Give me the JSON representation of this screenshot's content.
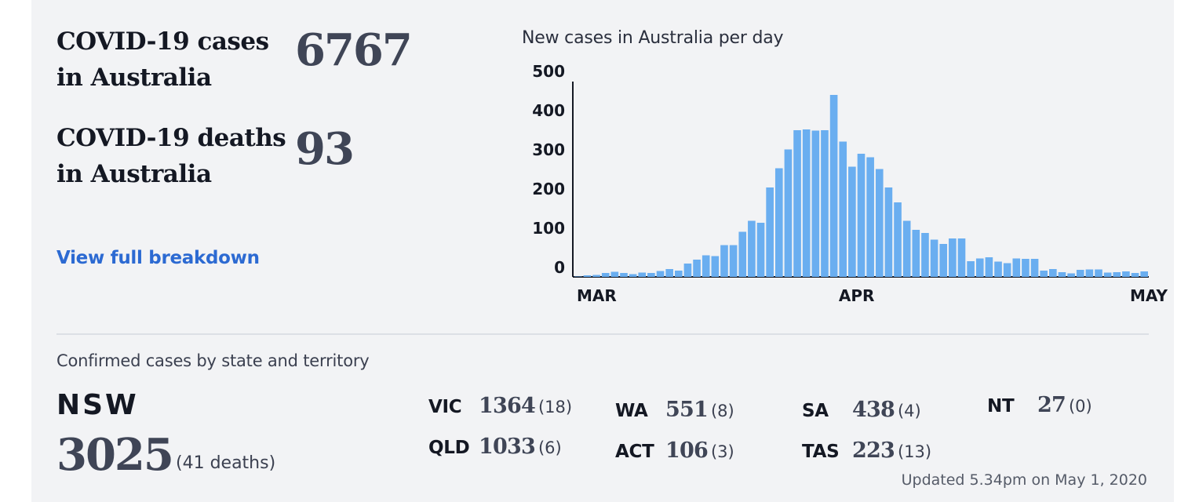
{
  "summary": {
    "cases_label_line1": "COVID-19 cases",
    "cases_label_line2": "in Australia",
    "cases_value": "6767",
    "deaths_label_line1": "COVID-19 deaths",
    "deaths_label_line2": "in Australia",
    "deaths_value": "93",
    "breakdown_link": "View full breakdown"
  },
  "chart_data": {
    "type": "bar",
    "title": "New cases in Australia per day",
    "xlabel": "",
    "ylabel": "",
    "ylim": [
      0,
      500
    ],
    "yticks": [
      500,
      400,
      300,
      200,
      100,
      0
    ],
    "x_tick_labels": [
      "MAR",
      "APR",
      "MAY"
    ],
    "bar_color": "#6aaef0",
    "values": [
      1,
      4,
      5,
      10,
      13,
      10,
      7,
      11,
      10,
      15,
      20,
      16,
      34,
      44,
      55,
      53,
      81,
      81,
      115,
      143,
      138,
      228,
      277,
      325,
      374,
      376,
      373,
      374,
      464,
      345,
      281,
      314,
      305,
      275,
      228,
      190,
      143,
      120,
      112,
      95,
      84,
      98,
      98,
      40,
      47,
      50,
      39,
      35,
      47,
      46,
      46,
      16,
      20,
      12,
      9,
      18,
      19,
      19,
      11,
      12,
      14,
      10,
      14
    ]
  },
  "states": {
    "section_title": "Confirmed cases by state and territory",
    "nsw": {
      "name": "NSW",
      "cases": "3025",
      "deaths": "(41 deaths)"
    },
    "list": [
      {
        "abbr": "VIC",
        "cases": "1364",
        "deaths": "(18)"
      },
      {
        "abbr": "QLD",
        "cases": "1033",
        "deaths": "(6)"
      },
      {
        "abbr": "WA",
        "cases": "551",
        "deaths": "(8)"
      },
      {
        "abbr": "ACT",
        "cases": "106",
        "deaths": "(3)"
      },
      {
        "abbr": "SA",
        "cases": "438",
        "deaths": "(4)"
      },
      {
        "abbr": "TAS",
        "cases": "223",
        "deaths": "(13)"
      },
      {
        "abbr": "NT",
        "cases": "27",
        "deaths": "(0)"
      }
    ]
  },
  "footer": {
    "updated": "Updated 5.34pm on May 1, 2020"
  }
}
